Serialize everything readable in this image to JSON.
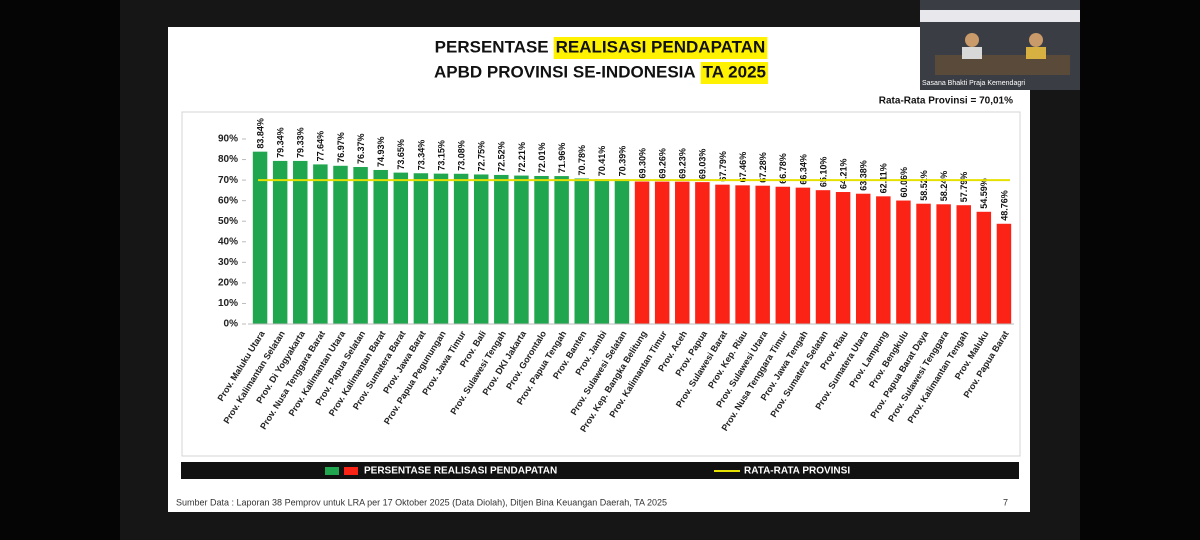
{
  "chart_data": {
    "type": "bar",
    "title_lines": [
      {
        "text": "PERSENTASE",
        "highlight": "REALISASI PENDAPATAN"
      },
      {
        "text": "APBD PROVINSI SE-INDONESIA",
        "highlight": "TA 2025"
      }
    ],
    "annotation": "Rata-Rata Provinsi = 70,01%",
    "categories": [
      "Prov. Maluku Utara",
      "Prov. Kalimantan Selatan",
      "Prov. Di Yogyakarta",
      "Prov. Nusa Tenggara Barat",
      "Prov. Kalimantan Utara",
      "Prov. Papua Selatan",
      "Prov. Kalimantan Barat",
      "Prov. Sumatera Barat",
      "Prov. Jawa Barat",
      "Prov. Papua Pegunungan",
      "Prov. Jawa Timur",
      "Prov. Bali",
      "Prov. Sulawesi Tengah",
      "Prov. DKI Jakarta",
      "Prov. Gorontalo",
      "Prov. Papua Tengah",
      "Prov. Banten",
      "Prov. Jambi",
      "Prov. Sulawesi Selatan",
      "Prov. Kep. Bangka Belitung",
      "Prov. Kalimantan Timur",
      "Prov. Aceh",
      "Prov. Papua",
      "Prov. Sulawesi Barat",
      "Prov. Kep. Riau",
      "Prov. Sulawesi Utara",
      "Prov. Nusa Tenggara Timur",
      "Prov. Jawa Tengah",
      "Prov. Sumatera Selatan",
      "Prov. Riau",
      "Prov. Sumatera Utara",
      "Prov. Lampung",
      "Prov. Bengkulu",
      "Prov. Papua Barat Daya",
      "Prov. Sulawesi Tenggara",
      "Prov. Kalimantan Tengah",
      "Prov. Maluku",
      "Prov. Papua Barat"
    ],
    "series": [
      {
        "name": "PERSENTASE REALISASI PENDAPATAN",
        "colors": [
          "#1fa64e",
          "#fb2316"
        ],
        "values": [
          83.84,
          79.34,
          79.33,
          77.64,
          76.97,
          76.37,
          74.93,
          73.65,
          73.34,
          73.15,
          73.08,
          72.75,
          72.52,
          72.21,
          72.01,
          71.96,
          70.78,
          70.41,
          70.39,
          69.3,
          69.26,
          69.23,
          69.03,
          67.79,
          67.46,
          67.28,
          66.78,
          66.34,
          65.1,
          64.21,
          63.38,
          62.11,
          60.06,
          58.52,
          58.24,
          57.79,
          54.59,
          48.76
        ],
        "value_labels": [
          "83.84%",
          "79.34%",
          "79.33%",
          "77.64%",
          "76.97%",
          "76.37%",
          "74.93%",
          "73.65%",
          "73.34%",
          "73.15%",
          "73.08%",
          "72.75%",
          "72.52%",
          "72.21%",
          "72.01%",
          "71.96%",
          "70.78%",
          "70.41%",
          "70.39%",
          "69.30%",
          "69.26%",
          "69.23%",
          "69.03%",
          "67.79%",
          "67.46%",
          "67.28%",
          "66.78%",
          "66.34%",
          "65.10%",
          "64.21%",
          "63.38%",
          "62.11%",
          "60.06%",
          "58.52%",
          "58.24%",
          "57.79%",
          "54.59%",
          "48.76%"
        ]
      }
    ],
    "reference_line": {
      "name": "RATA-RATA PROVINSI",
      "value": 70.01,
      "color": "#e6e000"
    },
    "ylim": [
      0,
      90
    ],
    "yticks": [
      {
        "value": 0,
        "label": "0%"
      },
      {
        "value": 10,
        "label": "10%"
      },
      {
        "value": 20,
        "label": "20%"
      },
      {
        "value": 30,
        "label": "30%"
      },
      {
        "value": 40,
        "label": "40%"
      },
      {
        "value": 50,
        "label": "50%"
      },
      {
        "value": 60,
        "label": "60%"
      },
      {
        "value": 70,
        "label": "70%"
      },
      {
        "value": 80,
        "label": "80%"
      },
      {
        "value": 90,
        "label": "90%"
      }
    ],
    "grid": false,
    "source": "Sumber Data : Laporan 38 Pemprov untuk LRA per 17 Oktober 2025 (Data Diolah), Ditjen Bina Keuangan Daerah, TA 2025",
    "page_number": "7"
  },
  "video": {
    "caption": "Sasana Bhakti Praja Kemendagri"
  }
}
